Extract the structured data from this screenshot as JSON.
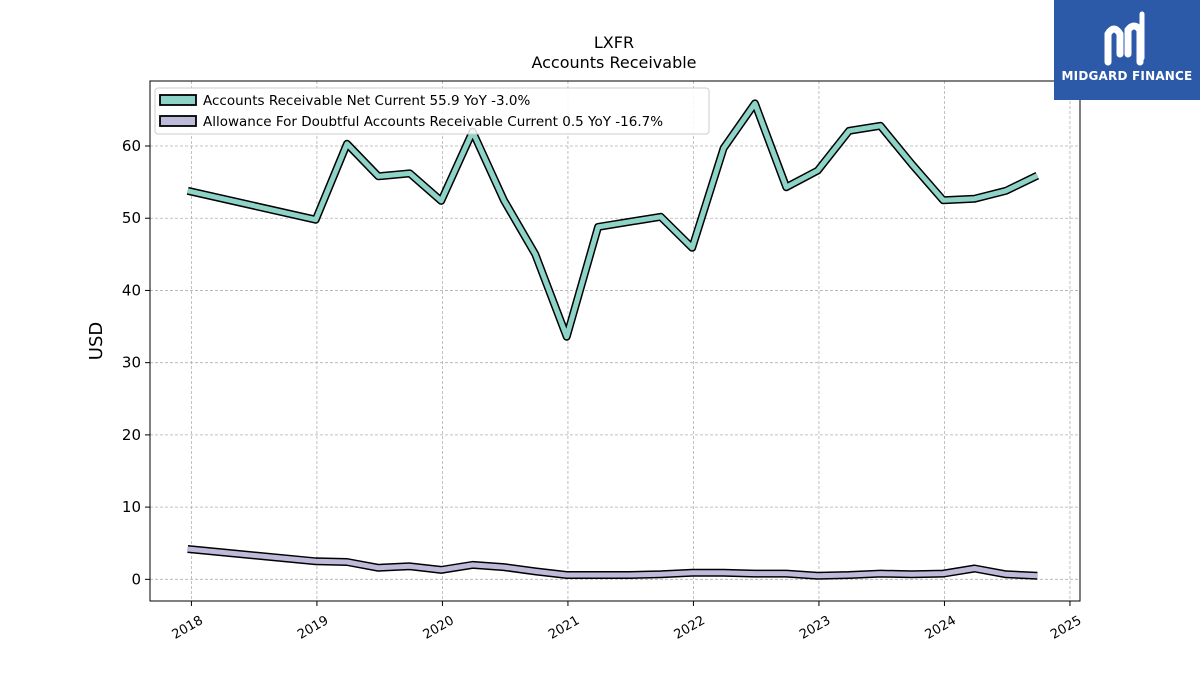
{
  "brand": {
    "name": "MIDGARD FINANCE",
    "bg_color": "#2c5aa8",
    "icon": "midgard-logo-icon"
  },
  "chart_data": {
    "type": "line",
    "title": "LXFR",
    "subtitle": "Accounts Receivable",
    "xlabel": "",
    "ylabel": "USD",
    "xlim": [
      2017.67,
      2025.08
    ],
    "ylim": [
      -3,
      69
    ],
    "yticks": [
      0,
      10,
      20,
      30,
      40,
      50,
      60
    ],
    "xticks": [
      "2018",
      "2019",
      "2020",
      "2021",
      "2022",
      "2023",
      "2024",
      "2025"
    ],
    "xtick_values": [
      2018,
      2019,
      2020,
      2021,
      2022,
      2023,
      2024,
      2025
    ],
    "grid": true,
    "legend_position": "top-left",
    "series": [
      {
        "name": "Accounts Receivable Net Current  55.9 YoY -3.0%",
        "color": "#8dd3c7",
        "x": [
          2017.97,
          2018.99,
          2019.24,
          2019.49,
          2019.74,
          2019.99,
          2020.24,
          2020.49,
          2020.74,
          2020.99,
          2021.24,
          2021.49,
          2021.74,
          2021.99,
          2022.24,
          2022.49,
          2022.74,
          2022.99,
          2023.24,
          2023.49,
          2023.74,
          2023.99,
          2024.24,
          2024.49,
          2024.74
        ],
        "values": [
          53.8,
          49.8,
          60.3,
          55.8,
          56.2,
          52.4,
          62.0,
          52.5,
          45.0,
          33.6,
          48.8,
          49.5,
          50.2,
          45.9,
          59.7,
          65.9,
          54.3,
          56.6,
          62.1,
          62.8,
          57.5,
          52.5,
          52.7,
          53.8,
          55.9
        ]
      },
      {
        "name": "Allowance For Doubtful Accounts Receivable Current  0.5 YoY -16.7%",
        "color": "#bebada",
        "x": [
          2017.97,
          2018.99,
          2019.24,
          2019.49,
          2019.74,
          2019.99,
          2020.24,
          2020.49,
          2020.74,
          2020.99,
          2021.24,
          2021.49,
          2021.74,
          2021.99,
          2022.24,
          2022.49,
          2022.74,
          2022.99,
          2023.24,
          2023.49,
          2023.74,
          2023.99,
          2024.24,
          2024.49,
          2024.74
        ],
        "values": [
          4.2,
          2.5,
          2.4,
          1.6,
          1.8,
          1.3,
          2.0,
          1.7,
          1.1,
          0.6,
          0.6,
          0.6,
          0.7,
          0.9,
          0.9,
          0.8,
          0.8,
          0.5,
          0.6,
          0.8,
          0.7,
          0.8,
          1.5,
          0.7,
          0.5
        ]
      }
    ]
  }
}
